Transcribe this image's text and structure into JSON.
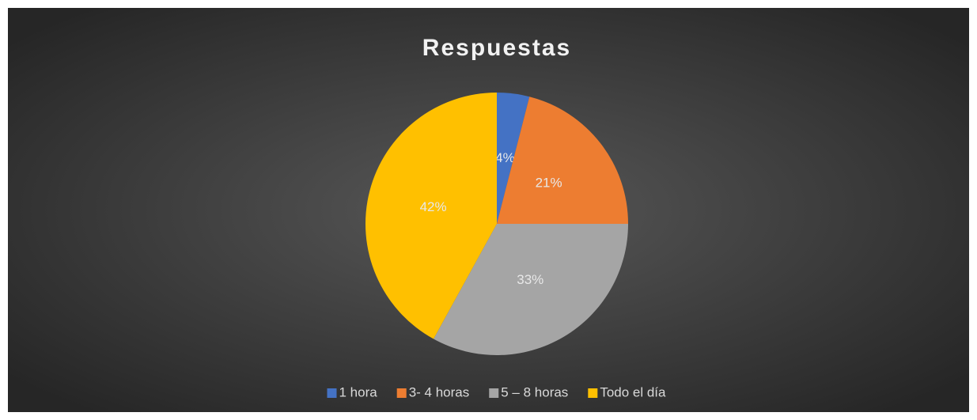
{
  "chart_data": {
    "type": "pie",
    "title": "Respuestas",
    "categories": [
      "1 hora",
      "3- 4 horas",
      "5 – 8 horas",
      "Todo el día"
    ],
    "values": [
      4,
      21,
      33,
      42
    ],
    "value_labels": [
      "4%",
      "21%",
      "33%",
      "42%"
    ],
    "colors": [
      "#4472c4",
      "#ed7d31",
      "#a5a5a5",
      "#ffc000"
    ],
    "legend": "bottom"
  }
}
